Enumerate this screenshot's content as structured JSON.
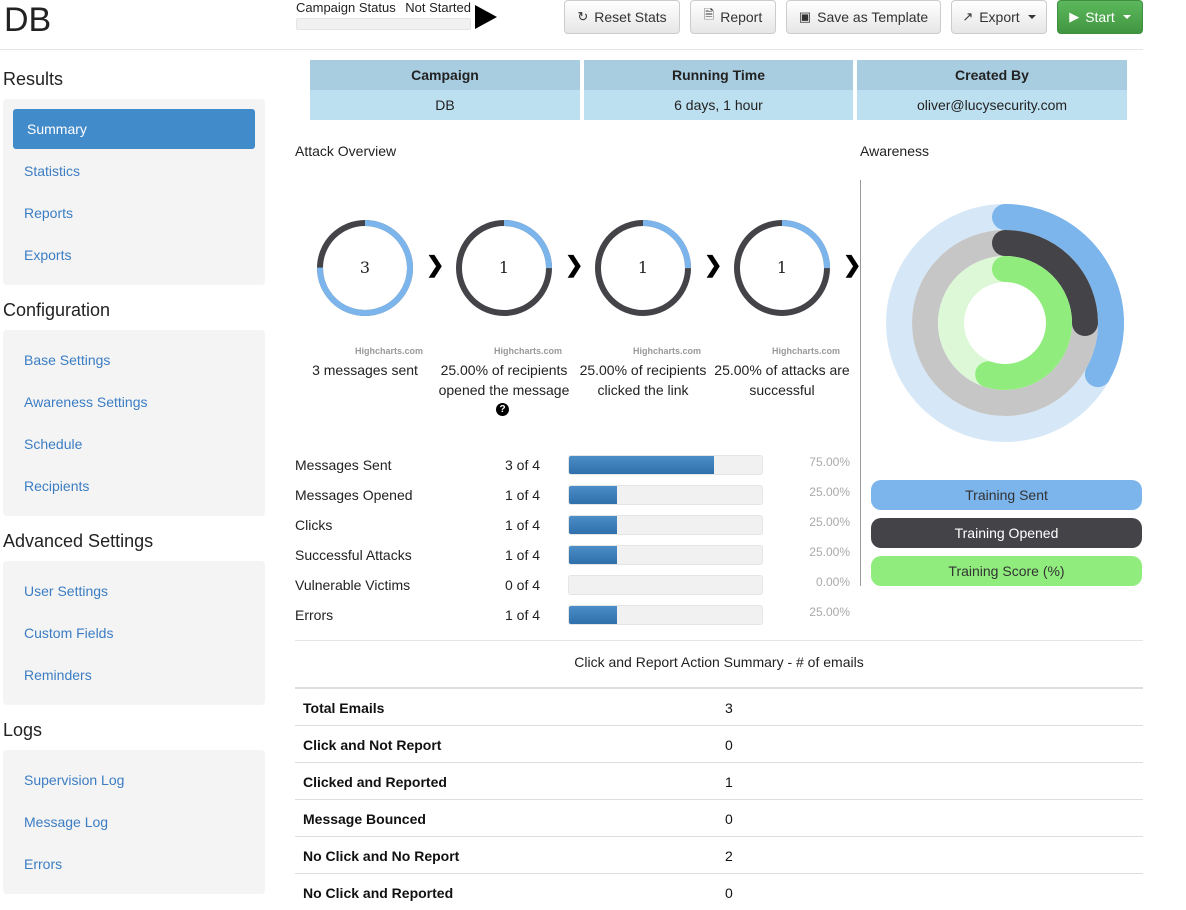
{
  "app": {
    "title": "DB"
  },
  "campaign_status": {
    "label": "Campaign Status",
    "value": "Not Started"
  },
  "toolbar": {
    "reset_stats": "Reset Stats",
    "report": "Report",
    "save_as_template": "Save as Template",
    "export": "Export",
    "start": "Start"
  },
  "sidebar": {
    "sections": [
      {
        "title": "Results",
        "items": [
          "Summary",
          "Statistics",
          "Reports",
          "Exports"
        ]
      },
      {
        "title": "Configuration",
        "items": [
          "Base Settings",
          "Awareness Settings",
          "Schedule",
          "Recipients"
        ]
      },
      {
        "title": "Advanced Settings",
        "items": [
          "User Settings",
          "Custom Fields",
          "Reminders"
        ]
      },
      {
        "title": "Logs",
        "items": [
          "Supervision Log",
          "Message Log",
          "Errors"
        ]
      }
    ],
    "active": "Summary"
  },
  "info_table": {
    "headers": [
      "Campaign",
      "Running Time",
      "Created By"
    ],
    "values": [
      "DB",
      "6 days, 1 hour",
      "oliver@lucysecurity.com"
    ]
  },
  "attack_overview": {
    "title": "Attack Overview",
    "credit": "Highcharts.com",
    "donuts": [
      {
        "value": "3",
        "fraction": 0.75,
        "label_line1": "3 messages sent",
        "label_line2": ""
      },
      {
        "value": "1",
        "fraction": 0.25,
        "label_line1": "25.00% of recipients",
        "label_line2": "opened the message"
      },
      {
        "value": "1",
        "fraction": 0.25,
        "label_line1": "25.00% of recipients",
        "label_line2": "clicked the link"
      },
      {
        "value": "1",
        "fraction": 0.25,
        "label_line1": "25.00% of attacks are",
        "label_line2": "successful"
      }
    ],
    "colors": {
      "active": "#7cb5ec",
      "rest": "#434348"
    }
  },
  "awareness": {
    "title": "Awareness",
    "legend": [
      "Training Sent",
      "Training Opened",
      "Training Score (%)"
    ],
    "colors": [
      "#7cb5ec",
      "#434348",
      "#90ed7d"
    ]
  },
  "stats": [
    {
      "label": "Messages Sent",
      "count": "3 of 4",
      "fraction": 0.75,
      "pct": "75.00%"
    },
    {
      "label": "Messages Opened",
      "count": "1 of 4",
      "fraction": 0.25,
      "pct": "25.00%"
    },
    {
      "label": "Clicks",
      "count": "1 of 4",
      "fraction": 0.25,
      "pct": "25.00%"
    },
    {
      "label": "Successful Attacks",
      "count": "1 of 4",
      "fraction": 0.25,
      "pct": "25.00%"
    },
    {
      "label": "Vulnerable Victims",
      "count": "0 of 4",
      "fraction": 0.0,
      "pct": "0.00%"
    },
    {
      "label": "Errors",
      "count": "1 of 4",
      "fraction": 0.25,
      "pct": "25.00%"
    }
  ],
  "summary": {
    "title": "Click and Report Action Summary - # of emails",
    "rows": [
      {
        "k": "Total Emails",
        "v": "3"
      },
      {
        "k": "Click and Not Report",
        "v": "0"
      },
      {
        "k": "Clicked and Reported",
        "v": "1"
      },
      {
        "k": "Message Bounced",
        "v": "0"
      },
      {
        "k": "No Click and No Report",
        "v": "2"
      },
      {
        "k": "No Click and Reported",
        "v": "0"
      }
    ]
  }
}
